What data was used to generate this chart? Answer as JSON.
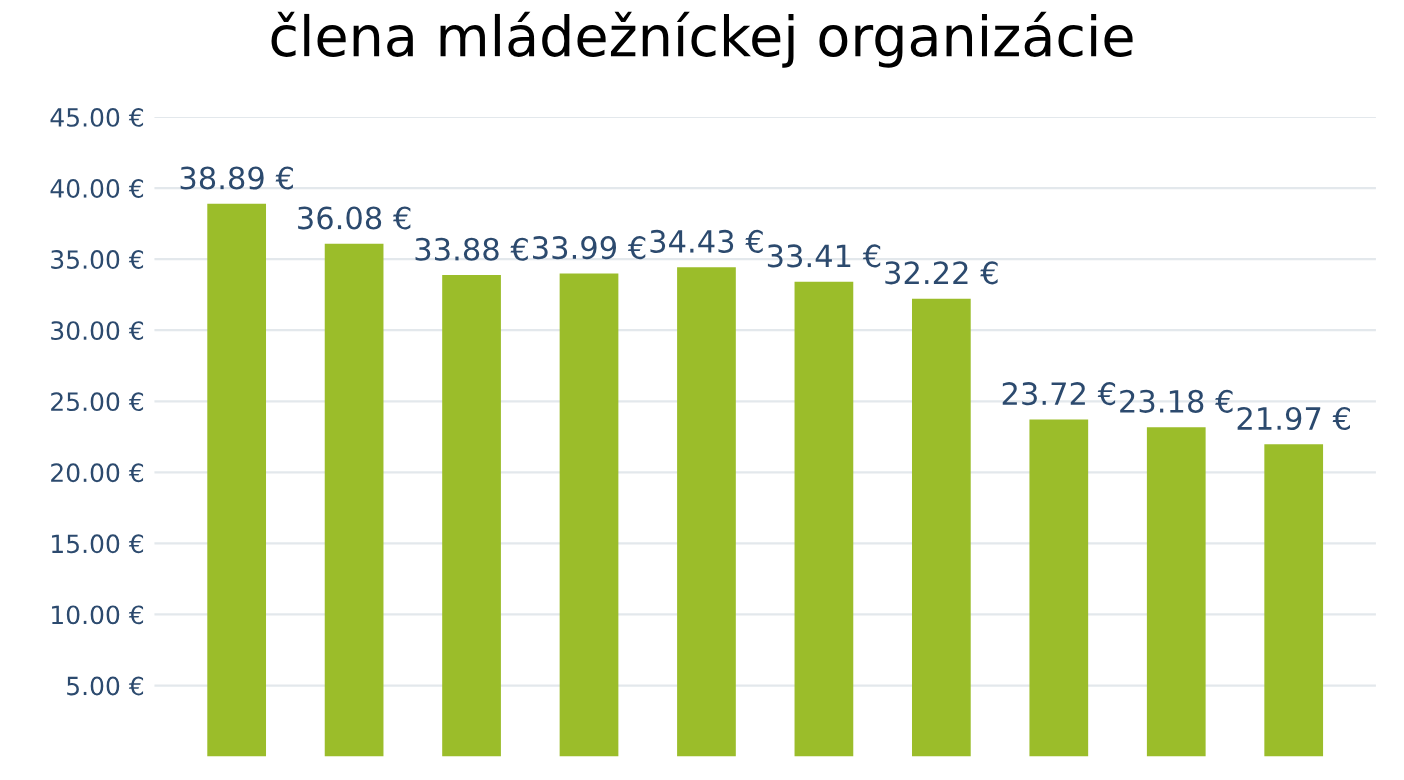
{
  "chart_data": {
    "type": "bar",
    "title": "člena mládežníckej organizácie",
    "categories": [
      null,
      null,
      null,
      null,
      null,
      null,
      null,
      null,
      null,
      null
    ],
    "values": [
      38.89,
      36.08,
      33.88,
      33.99,
      34.43,
      33.41,
      32.22,
      23.72,
      23.18,
      21.97
    ],
    "value_labels": [
      "38.89 €",
      "36.08 €",
      "33.88 €",
      "33.99 €",
      "34.43 €",
      "33.41 €",
      "32.22 €",
      "23.72 €",
      "23.18 €",
      "21.97 €"
    ],
    "color": "#9bbd2a",
    "ylim": [
      0,
      45
    ],
    "yticks": [
      {
        "value": 5,
        "label": "5.00 €"
      },
      {
        "value": 10,
        "label": "10.00 €"
      },
      {
        "value": 15,
        "label": "15.00 €"
      },
      {
        "value": 20,
        "label": "20.00 €"
      },
      {
        "value": 25,
        "label": "25.00 €"
      },
      {
        "value": 30,
        "label": "30.00 €"
      },
      {
        "value": 35,
        "label": "35.00 €"
      },
      {
        "value": 40,
        "label": "40.00 €"
      },
      {
        "value": 45,
        "label": "45.00 €"
      }
    ],
    "grid": "y"
  }
}
